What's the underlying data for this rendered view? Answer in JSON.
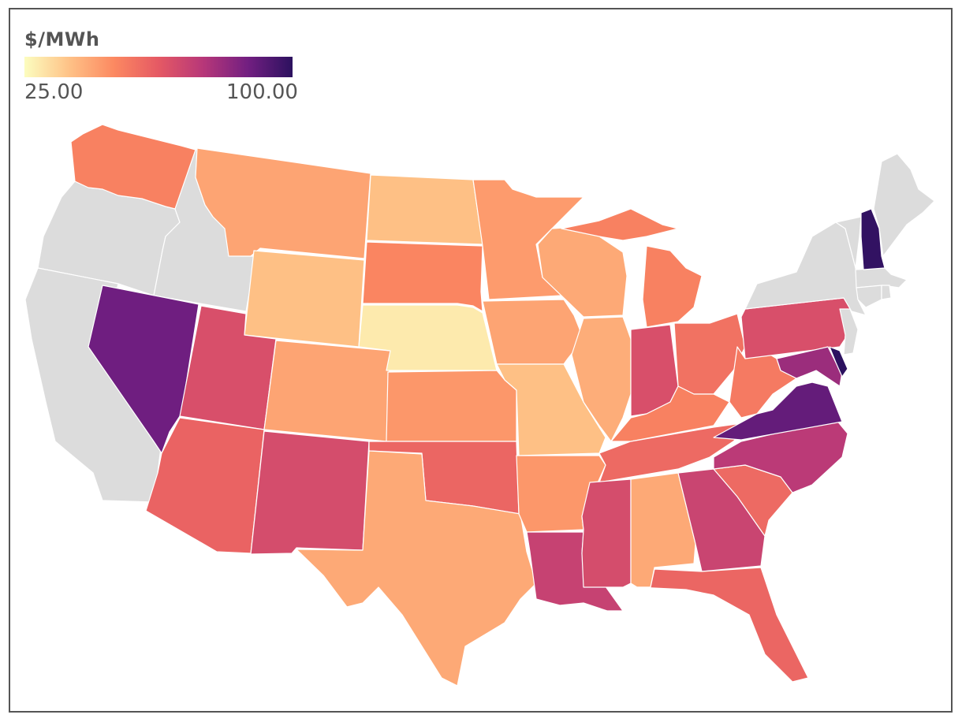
{
  "legend": {
    "title": "$/MWh",
    "min": 25.0,
    "max": 100.0,
    "min_label": "25.00",
    "max_label": "100.00",
    "colormap": [
      "#fcfdbf",
      "#fec287",
      "#fc8961",
      "#e55964",
      "#b73779",
      "#721f81",
      "#2c115f"
    ]
  },
  "no_data_color": "#dcdcdc",
  "chart_data": {
    "type": "choropleth",
    "unit": "$/MWh",
    "scale_range": [
      25.0,
      100.0
    ],
    "states": [
      {
        "name": "Washington",
        "value": 52
      },
      {
        "name": "Oregon",
        "value": null
      },
      {
        "name": "California",
        "value": null
      },
      {
        "name": "Idaho",
        "value": null
      },
      {
        "name": "Nevada",
        "value": 88
      },
      {
        "name": "Montana",
        "value": 44
      },
      {
        "name": "Wyoming",
        "value": 38
      },
      {
        "name": "Utah",
        "value": 66
      },
      {
        "name": "Arizona",
        "value": 60
      },
      {
        "name": "Colorado",
        "value": 44
      },
      {
        "name": "New Mexico",
        "value": 67
      },
      {
        "name": "North Dakota",
        "value": 38
      },
      {
        "name": "South Dakota",
        "value": 51
      },
      {
        "name": "Nebraska",
        "value": 29
      },
      {
        "name": "Kansas",
        "value": 47
      },
      {
        "name": "Oklahoma",
        "value": 59
      },
      {
        "name": "Texas",
        "value": 43
      },
      {
        "name": "Minnesota",
        "value": 46
      },
      {
        "name": "Iowa",
        "value": 44
      },
      {
        "name": "Missouri",
        "value": 38
      },
      {
        "name": "Arkansas",
        "value": 47
      },
      {
        "name": "Louisiana",
        "value": 71
      },
      {
        "name": "Wisconsin",
        "value": 43
      },
      {
        "name": "Illinois",
        "value": 42
      },
      {
        "name": "Michigan",
        "value": 52
      },
      {
        "name": "Indiana",
        "value": 66
      },
      {
        "name": "Ohio",
        "value": 56
      },
      {
        "name": "Kentucky",
        "value": 52
      },
      {
        "name": "Tennessee",
        "value": 58
      },
      {
        "name": "Mississippi",
        "value": 67
      },
      {
        "name": "Alabama",
        "value": 43
      },
      {
        "name": "Georgia",
        "value": 70
      },
      {
        "name": "Florida",
        "value": 59
      },
      {
        "name": "South Carolina",
        "value": 58
      },
      {
        "name": "North Carolina",
        "value": 74
      },
      {
        "name": "Virginia",
        "value": 90
      },
      {
        "name": "West Virginia",
        "value": 54
      },
      {
        "name": "Pennsylvania",
        "value": 66
      },
      {
        "name": "Maryland",
        "value": 80
      },
      {
        "name": "Delaware",
        "value": 100
      },
      {
        "name": "New Jersey",
        "value": null
      },
      {
        "name": "New York",
        "value": null
      },
      {
        "name": "Vermont",
        "value": null
      },
      {
        "name": "New Hampshire",
        "value": 99
      },
      {
        "name": "Maine",
        "value": null
      },
      {
        "name": "Massachusetts",
        "value": null
      },
      {
        "name": "Connecticut",
        "value": null
      },
      {
        "name": "Rhode Island",
        "value": null
      }
    ]
  }
}
